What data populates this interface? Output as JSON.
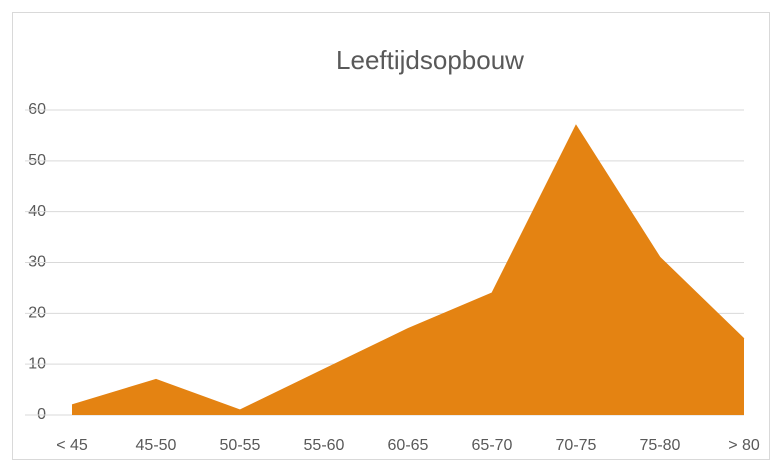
{
  "chart_data": {
    "type": "area",
    "title": "Leeftijdsopbouw",
    "categories": [
      "< 45",
      "45-50",
      "50-55",
      "55-60",
      "60-65",
      "65-70",
      "70-75",
      "75-80",
      "> 80"
    ],
    "values": [
      2,
      7,
      1,
      9,
      17,
      24,
      57,
      31,
      15
    ],
    "color": "#e48312",
    "ylim": [
      0,
      60
    ],
    "yticks": [
      0,
      10,
      20,
      30,
      40,
      50,
      60
    ],
    "grid": true
  }
}
